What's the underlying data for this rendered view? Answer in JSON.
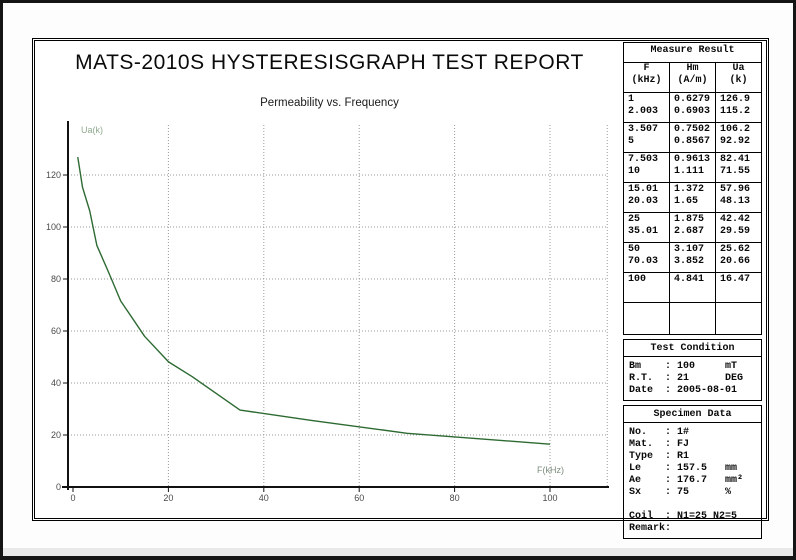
{
  "report": {
    "title": "MATS-2010S HYSTERESISGRAPH TEST REPORT",
    "subtitle": "Permeability vs. Frequency"
  },
  "chart_data": {
    "type": "line",
    "title": "Permeability vs. Frequency",
    "xlabel": "F(kHz)",
    "ylabel": "Ua(k)",
    "x": [
      1,
      2.003,
      3.507,
      5,
      7.503,
      10,
      15.01,
      20.03,
      25,
      35.01,
      50,
      70.03,
      100
    ],
    "y": [
      126.9,
      115.2,
      106.2,
      92.92,
      82.41,
      71.55,
      57.96,
      48.13,
      42.42,
      29.59,
      25.62,
      20.66,
      16.47
    ],
    "xlim": [
      0,
      112
    ],
    "ylim": [
      0,
      138
    ],
    "xticks": [
      0,
      20,
      40,
      60,
      80,
      100
    ],
    "yticks": [
      0,
      20,
      40,
      60,
      80,
      100,
      120
    ],
    "grid": true,
    "legend": "none",
    "line_color": "#2d6a32",
    "grid_color": "#9a9a9a",
    "tick_color": "#4a4a4a",
    "ylabel_color": "#8fa98f",
    "xlabel_color": "#7d8d7d"
  },
  "panel": {
    "measure": {
      "title": "Measure Result",
      "columns": [
        [
          "F",
          "(kHz)"
        ],
        [
          "Hm",
          "(A/m)"
        ],
        [
          "Ua",
          "(k)"
        ]
      ],
      "groups": [
        [
          [
            "1",
            "0.6279",
            "126.9"
          ],
          [
            "2.003",
            "0.6903",
            "115.2"
          ]
        ],
        [
          [
            "3.507",
            "0.7502",
            "106.2"
          ],
          [
            "5",
            "0.8567",
            "92.92"
          ]
        ],
        [
          [
            "7.503",
            "0.9613",
            "82.41"
          ],
          [
            "10",
            "1.111",
            "71.55"
          ]
        ],
        [
          [
            "15.01",
            "1.372",
            "57.96"
          ],
          [
            "20.03",
            "1.65",
            "48.13"
          ]
        ],
        [
          [
            "25",
            "1.875",
            "42.42"
          ],
          [
            "35.01",
            "2.687",
            "29.59"
          ]
        ],
        [
          [
            "50",
            "3.107",
            "25.62"
          ],
          [
            "70.03",
            "3.852",
            "20.66"
          ]
        ],
        [
          [
            "100",
            "4.841",
            "16.47"
          ]
        ],
        []
      ]
    },
    "test_condition": {
      "title": "Test Condition",
      "lines": [
        {
          "label": "Bm",
          "value": "100",
          "unit": "mT"
        },
        {
          "label": "R.T.",
          "value": "21",
          "unit": "DEG"
        },
        {
          "label": "Date",
          "value": "2005-08-01",
          "unit": ""
        }
      ]
    },
    "specimen": {
      "title": "Specimen Data",
      "lines": [
        {
          "label": "No.",
          "value": "1#",
          "unit": ""
        },
        {
          "label": "Mat.",
          "value": "FJ",
          "unit": ""
        },
        {
          "label": "Type",
          "value": "R1",
          "unit": ""
        },
        {
          "label": "Le",
          "value": "157.5",
          "unit": "mm"
        },
        {
          "label": "Ae",
          "value": "176.7",
          "unit": "mm²"
        },
        {
          "label": "Sx",
          "value": "75",
          "unit": "%"
        },
        {
          "label": "",
          "value": "",
          "unit": ""
        },
        {
          "label": "Coil",
          "value": "N1=25 N2=5",
          "unit": ""
        },
        {
          "label": "Remark",
          "value": "",
          "unit": ""
        }
      ]
    }
  }
}
